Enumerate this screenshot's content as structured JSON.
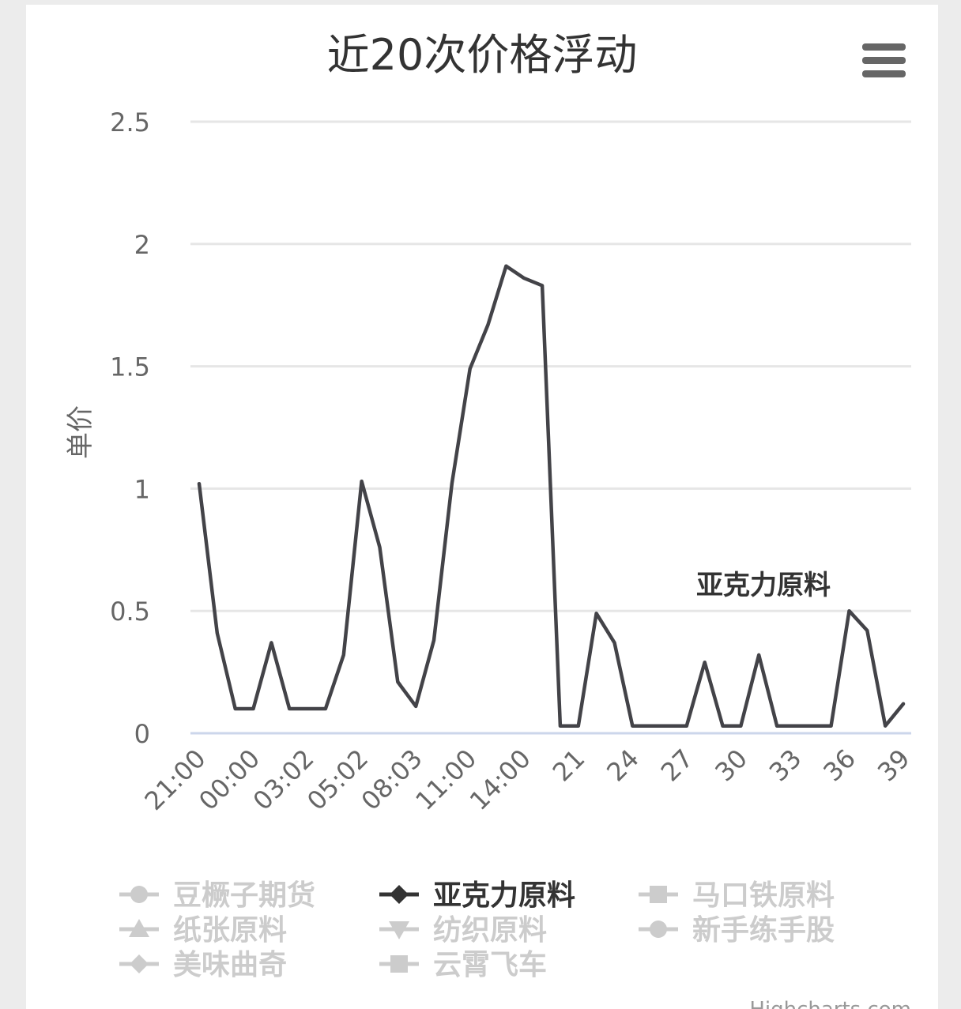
{
  "chart_data": {
    "type": "line",
    "title": "近20次价格浮动",
    "ylabel": "单价",
    "xlabel": "",
    "ylim": [
      0,
      2.5
    ],
    "yticks": [
      "0",
      "0.5",
      "1",
      "1.5",
      "2",
      "2.5"
    ],
    "x_tick_labels": [
      "21:00",
      "00:00",
      "03:02",
      "05:02",
      "08:03",
      "11:00",
      "14:00",
      "21",
      "24",
      "27",
      "30",
      "33",
      "36",
      "39"
    ],
    "x_tick_positions": [
      0,
      3,
      6,
      9,
      12,
      15,
      18,
      21,
      24,
      27,
      30,
      33,
      36,
      39
    ],
    "series": [
      {
        "name": "亚克力原料",
        "color": "#434348",
        "values": [
          1.02,
          0.41,
          0.1,
          0.1,
          0.37,
          0.1,
          0.1,
          0.1,
          0.32,
          1.03,
          0.76,
          0.21,
          0.11,
          0.38,
          1.02,
          1.49,
          1.67,
          1.91,
          1.86,
          1.83,
          0.03,
          0.03,
          0.49,
          0.37,
          0.03,
          0.03,
          0.03,
          0.03,
          0.29,
          0.03,
          0.03,
          0.32,
          0.03,
          0.03,
          0.03,
          0.03,
          0.5,
          0.42,
          0.03,
          0.12
        ]
      }
    ],
    "series_label": "亚克力原料",
    "legend_placement": "bottom",
    "grid": true
  },
  "legend": {
    "items": [
      {
        "label": "豆橛子期货",
        "symbol": "circle",
        "active": false
      },
      {
        "label": "亚克力原料",
        "symbol": "diamond",
        "active": true
      },
      {
        "label": "马口铁原料",
        "symbol": "square",
        "active": false
      },
      {
        "label": "纸张原料",
        "symbol": "triangle",
        "active": false
      },
      {
        "label": "纺织原料",
        "symbol": "triangle-down",
        "active": false
      },
      {
        "label": "新手练手股",
        "symbol": "circle",
        "active": false
      },
      {
        "label": "美味曲奇",
        "symbol": "diamond",
        "active": false
      },
      {
        "label": "云霄飞车",
        "symbol": "square",
        "active": false
      }
    ],
    "active_color": "#333333",
    "inactive_color": "#cccccc"
  },
  "menu": {
    "icon": "hamburger-menu-icon"
  },
  "credits": "Highcharts.com"
}
